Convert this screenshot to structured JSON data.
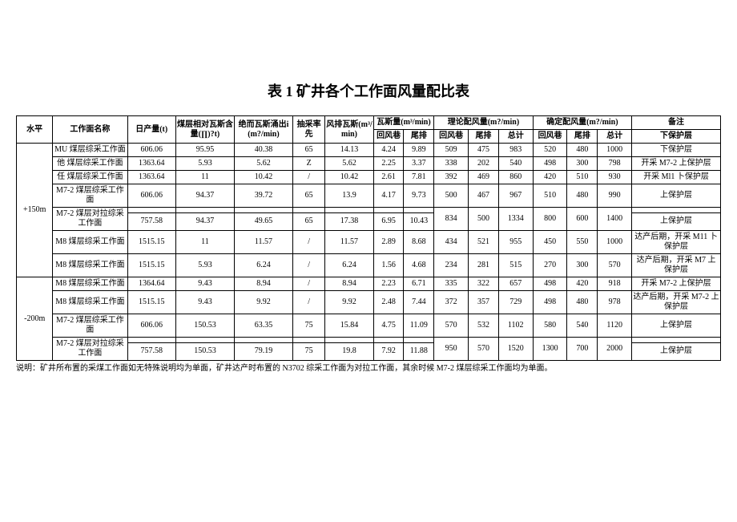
{
  "title": "表 1 矿井各个工作面风量配比表",
  "columns": {
    "level": "水平",
    "name": "工作面名称",
    "daily": "日产量(t)",
    "relgas": "煤层相对瓦斯含量(∏)?t)",
    "absgas": "绝而瓦斯涌出i(m?/min)",
    "rate": "抽采率先",
    "exhaust": "风排瓦斯(m³/min)",
    "gasqty": "瓦斯量(m³/min)",
    "gq_return": "回风巷",
    "gq_tail": "尾排",
    "theory": "理论配风量(m?/min)",
    "th_return": "回风巷",
    "th_tail": "尾排",
    "th_total": "总计",
    "determ": "确定配风量(m?/min)",
    "de_return": "回风巷",
    "de_tail": "尾排",
    "de_total": "总计",
    "remark": "备注",
    "remark_sub": "下保护层"
  },
  "level1": "+150m",
  "level2": "-200m",
  "rows": [
    {
      "name": "MU 煤层综采工作面",
      "daily": "606.06",
      "relgas": "95.95",
      "absgas": "40.38",
      "rate": "65",
      "exhaust": "14.13",
      "gq_r": "4.24",
      "gq_t": "9.89",
      "th_r": "509",
      "th_t": "475",
      "th_s": "983",
      "de_r": "520",
      "de_t": "480",
      "de_s": "1000",
      "remark": "下保护层"
    },
    {
      "name": "他 煤层综采工作面",
      "daily": "1363.64",
      "relgas": "5.93",
      "absgas": "5.62",
      "rate": "Z",
      "exhaust": "5.62",
      "gq_r": "2.25",
      "gq_t": "3.37",
      "th_r": "338",
      "th_t": "202",
      "th_s": "540",
      "de_r": "498",
      "de_t": "300",
      "de_s": "798",
      "remark": "开采 M7-2 上保护层"
    },
    {
      "name": "任 煤层综采工作面",
      "daily": "1363.64",
      "relgas": "11",
      "absgas": "10.42",
      "rate": "/",
      "exhaust": "10.42",
      "gq_r": "2.61",
      "gq_t": "7.81",
      "th_r": "392",
      "th_t": "469",
      "th_s": "860",
      "de_r": "420",
      "de_t": "510",
      "de_s": "930",
      "remark": "开采 Ml1 卜保护层"
    },
    {
      "name": "M7-2 煤层综采工作面",
      "daily": "606.06",
      "relgas": "94.37",
      "absgas": "39.72",
      "rate": "65",
      "exhaust": "13.9",
      "gq_r": "4.17",
      "gq_t": "9.73",
      "th_r": "500",
      "th_t": "467",
      "th_s": "967",
      "de_r": "510",
      "de_t": "480",
      "de_s": "990",
      "remark": "上保护层"
    },
    {
      "name": "M7-2 煤层对拉综采工作面",
      "daily": "",
      "relgas": "",
      "absgas": "",
      "rate": "",
      "exhaust": "",
      "gq_r": "",
      "gq_t": "",
      "th_r": "834",
      "th_t": "500",
      "th_s": "1334",
      "de_r": "800",
      "de_t": "600",
      "de_s": "1400",
      "remark": ""
    },
    {
      "name": "",
      "daily": "757.58",
      "relgas": "94.37",
      "absgas": "49.65",
      "rate": "65",
      "exhaust": "17.38",
      "gq_r": "6.95",
      "gq_t": "10.43",
      "th_r": "",
      "th_t": "",
      "th_s": "",
      "de_r": "",
      "de_t": "",
      "de_s": "",
      "remark": "上保护层"
    },
    {
      "name": "M8 煤层综采工作面",
      "daily": "1515.15",
      "relgas": "11",
      "absgas": "11.57",
      "rate": "/",
      "exhaust": "11.57",
      "gq_r": "2.89",
      "gq_t": "8.68",
      "th_r": "434",
      "th_t": "521",
      "th_s": "955",
      "de_r": "450",
      "de_t": "550",
      "de_s": "1000",
      "remark": "达产后期，开采 M11 卜保护层"
    },
    {
      "name": "M8 煤层综采工作面",
      "daily": "1515.15",
      "relgas": "5.93",
      "absgas": "6.24",
      "rate": "/",
      "exhaust": "6.24",
      "gq_r": "1.56",
      "gq_t": "4.68",
      "th_r": "234",
      "th_t": "281",
      "th_s": "515",
      "de_r": "270",
      "de_t": "300",
      "de_s": "570",
      "remark": "达产后期，开采 M7 上保护层"
    },
    {
      "name": "M8 煤层综采工作面",
      "daily": "1364.64",
      "relgas": "9.43",
      "absgas": "8.94",
      "rate": "/",
      "exhaust": "8.94",
      "gq_r": "2.23",
      "gq_t": "6.71",
      "th_r": "335",
      "th_t": "322",
      "th_s": "657",
      "de_r": "498",
      "de_t": "420",
      "de_s": "918",
      "remark": "开采 M7-2 上保护层"
    },
    {
      "name": "M8 煤层综采工作面",
      "daily": "1515.15",
      "relgas": "9.43",
      "absgas": "9.92",
      "rate": "/",
      "exhaust": "9.92",
      "gq_r": "2.48",
      "gq_t": "7.44",
      "th_r": "372",
      "th_t": "357",
      "th_s": "729",
      "de_r": "498",
      "de_t": "480",
      "de_s": "978",
      "remark": "达产后期，开采 M7-2 上保护层"
    },
    {
      "name": "M7-2 煤层综采工作面",
      "daily": "606.06",
      "relgas": "150.53",
      "absgas": "63.35",
      "rate": "75",
      "exhaust": "15.84",
      "gq_r": "4.75",
      "gq_t": "11.09",
      "th_r": "570",
      "th_t": "532",
      "th_s": "1102",
      "de_r": "580",
      "de_t": "540",
      "de_s": "1120",
      "remark": "上保护层"
    },
    {
      "name": "M7-2 煤层对拉综采工作面",
      "daily": "",
      "relgas": "",
      "absgas": "",
      "rate": "",
      "exhaust": "",
      "gq_r": "",
      "gq_t": "",
      "th_r": "950",
      "th_t": "570",
      "th_s": "1520",
      "de_r": "1300",
      "de_t": "700",
      "de_s": "2000",
      "remark": ""
    },
    {
      "name": "",
      "daily": "757.58",
      "relgas": "150.53",
      "absgas": "79.19",
      "rate": "75",
      "exhaust": "19.8",
      "gq_r": "7.92",
      "gq_t": "11.88",
      "th_r": "",
      "th_t": "",
      "th_s": "",
      "de_r": "",
      "de_t": "",
      "de_s": "",
      "remark": "上保护层"
    }
  ],
  "note": "说明：矿井所布置的采煤工作面如无特殊说明均为单面，矿井达产时布置的 N3702 综采工作面为对拉工作面，其余时候 M7-2 煤层综采工作面均为单面。",
  "style": {
    "font_family": "SimSun",
    "title_fontsize": 18,
    "cell_fontsize": 10,
    "border_color": "#000000",
    "background": "#ffffff",
    "text_color": "#000000"
  }
}
